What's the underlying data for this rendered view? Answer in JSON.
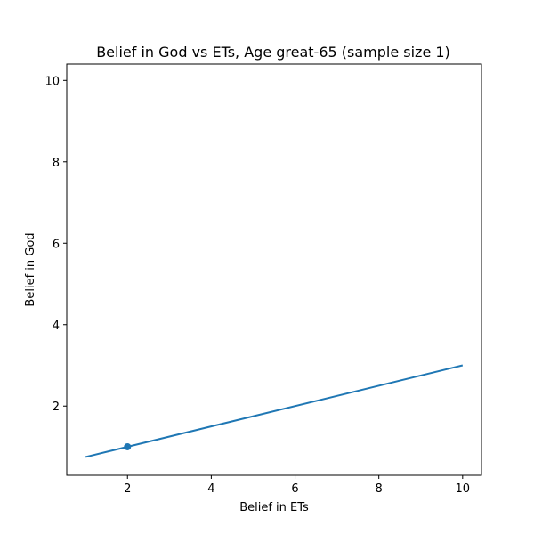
{
  "chart_data": {
    "type": "scatter",
    "title": "Belief in God vs ETs, Age great-65 (sample size 1)",
    "xlabel": "Belief in ETs",
    "ylabel": "Belief in God",
    "xlim": [
      0.55,
      10.45
    ],
    "ylim": [
      0.3,
      10.4
    ],
    "xticks": [
      2,
      4,
      6,
      8,
      10
    ],
    "yticks": [
      2,
      4,
      6,
      8,
      10
    ],
    "grid": false,
    "series": [
      {
        "type": "scatter",
        "x": [
          2
        ],
        "y": [
          1
        ],
        "color": "#1f77b4"
      },
      {
        "type": "line",
        "x": [
          1,
          10
        ],
        "y": [
          0.75,
          3.0
        ],
        "color": "#1f77b4"
      }
    ]
  }
}
